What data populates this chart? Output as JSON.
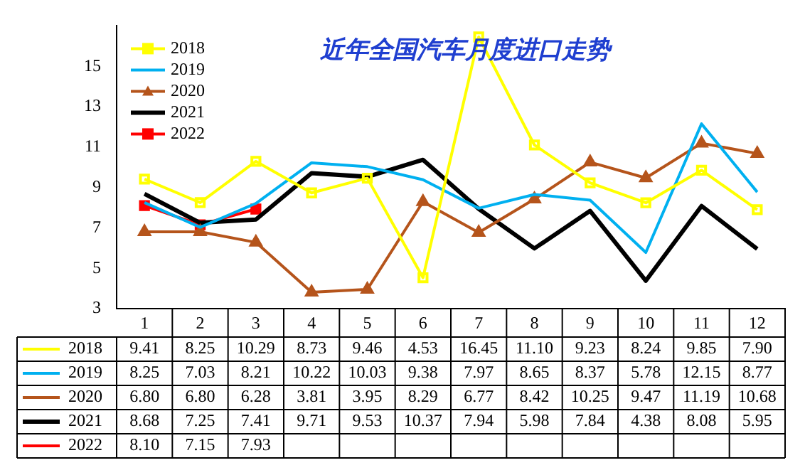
{
  "chart_data": {
    "type": "line",
    "title": "近年全国汽车月度进口走势",
    "categories": [
      "1",
      "2",
      "3",
      "4",
      "5",
      "6",
      "7",
      "8",
      "9",
      "10",
      "11",
      "12"
    ],
    "ylim": [
      3,
      17
    ],
    "yticks": [
      3,
      5,
      7,
      9,
      11,
      13,
      15
    ],
    "legend": "top left",
    "line_style": "solid",
    "series": [
      {
        "name": "2018",
        "color": "#ffff00",
        "marker": "square",
        "values": [
          9.41,
          8.25,
          10.29,
          8.73,
          9.46,
          4.53,
          16.45,
          11.1,
          9.23,
          8.24,
          9.85,
          7.9
        ],
        "value_labels": [
          "9.41",
          "8.25",
          "10.29",
          "8.73",
          "9.46",
          "4.53",
          "16.45",
          "11.10",
          "9.23",
          "8.24",
          "9.85",
          "7.90"
        ]
      },
      {
        "name": "2019",
        "color": "#00b0f0",
        "marker": "none",
        "values": [
          8.25,
          7.03,
          8.21,
          10.22,
          10.03,
          9.38,
          7.97,
          8.65,
          8.37,
          5.78,
          12.15,
          8.77
        ],
        "value_labels": [
          "8.25",
          "7.03",
          "8.21",
          "10.22",
          "10.03",
          "9.38",
          "7.97",
          "8.65",
          "8.37",
          "5.78",
          "12.15",
          "8.77"
        ]
      },
      {
        "name": "2020",
        "color": "#b5541b",
        "marker": "triangle",
        "values": [
          6.8,
          6.8,
          6.28,
          3.81,
          3.95,
          8.29,
          6.77,
          8.42,
          10.25,
          9.47,
          11.19,
          10.68
        ],
        "value_labels": [
          "6.80",
          "6.80",
          "6.28",
          "3.81",
          "3.95",
          "8.29",
          "6.77",
          "8.42",
          "10.25",
          "9.47",
          "11.19",
          "10.68"
        ]
      },
      {
        "name": "2021",
        "color": "#000000",
        "marker": "none",
        "values": [
          8.68,
          7.25,
          7.41,
          9.71,
          9.53,
          10.37,
          7.94,
          5.98,
          7.84,
          4.38,
          8.08,
          5.95
        ],
        "value_labels": [
          "8.68",
          "7.25",
          "7.41",
          "9.71",
          "9.53",
          "10.37",
          "7.94",
          "5.98",
          "7.84",
          "4.38",
          "8.08",
          "5.95"
        ]
      },
      {
        "name": "2022",
        "color": "#ff0000",
        "marker": "square",
        "values": [
          8.1,
          7.15,
          7.93,
          null,
          null,
          null,
          null,
          null,
          null,
          null,
          null,
          null
        ],
        "value_labels": [
          "8.10",
          "7.15",
          "7.93",
          null,
          null,
          null,
          null,
          null,
          null,
          null,
          null,
          null
        ]
      }
    ]
  }
}
